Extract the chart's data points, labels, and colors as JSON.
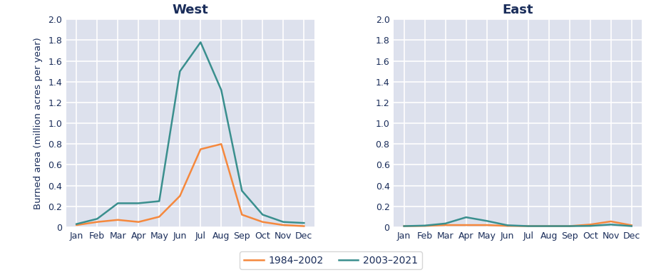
{
  "months": [
    "Jan",
    "Feb",
    "Mar",
    "Apr",
    "May",
    "Jun",
    "Jul",
    "Aug",
    "Sep",
    "Oct",
    "Nov",
    "Dec"
  ],
  "west_1984": [
    0.02,
    0.05,
    0.07,
    0.05,
    0.1,
    0.3,
    0.75,
    0.8,
    0.12,
    0.05,
    0.02,
    0.01
  ],
  "west_2003": [
    0.03,
    0.08,
    0.23,
    0.23,
    0.25,
    1.5,
    1.78,
    1.32,
    0.35,
    0.12,
    0.05,
    0.04
  ],
  "east_1984": [
    0.01,
    0.012,
    0.02,
    0.02,
    0.02,
    0.012,
    0.01,
    0.01,
    0.01,
    0.025,
    0.055,
    0.018
  ],
  "east_2003": [
    0.01,
    0.015,
    0.035,
    0.095,
    0.06,
    0.018,
    0.01,
    0.01,
    0.01,
    0.012,
    0.025,
    0.01
  ],
  "color_1984": "#f5883d",
  "color_2003": "#3a8f8e",
  "title_west": "West",
  "title_east": "East",
  "ylabel": "Burned area (million acres per year)",
  "ylim": [
    0,
    2.0
  ],
  "yticks": [
    0,
    0.2,
    0.4,
    0.6,
    0.8,
    1.0,
    1.2,
    1.4,
    1.6,
    1.8,
    2.0
  ],
  "ytick_labels": [
    "0",
    "0.2",
    "0.4",
    "0.6",
    "0.8",
    "1.0",
    "1.2",
    "1.4",
    "1.6",
    "1.8",
    "2.0"
  ],
  "legend_labels": [
    "1984–2002",
    "2003–2021"
  ],
  "fig_background": "#ffffff",
  "plot_background": "#dde1ed",
  "title_color": "#1a2d5a",
  "tick_color": "#1a2d5a",
  "grid_color": "#ffffff",
  "title_fontsize": 13,
  "label_fontsize": 9.5,
  "tick_fontsize": 9,
  "legend_fontsize": 10,
  "linewidth": 1.8,
  "grid_linewidth": 1.2
}
